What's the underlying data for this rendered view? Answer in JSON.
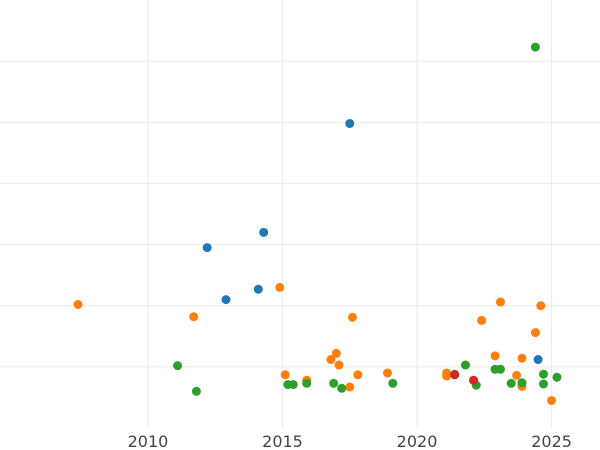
{
  "chart_data": {
    "type": "scatter",
    "title": "",
    "xlabel": "",
    "ylabel": "",
    "xlim": [
      2004.5,
      2026.8
    ],
    "ylim": [
      0,
      7
    ],
    "grid": true,
    "x_ticks": [
      2010,
      2015,
      2020,
      2025
    ],
    "x_tick_labels": [
      "2010",
      "2015",
      "2020",
      "2025"
    ],
    "y_gridlines": [
      1,
      2,
      3,
      4,
      5,
      6
    ],
    "series": [
      {
        "color": "#1f77b4",
        "points": [
          [
            2012.2,
            2.95
          ],
          [
            2012.9,
            2.1
          ],
          [
            2014.1,
            2.27
          ],
          [
            2014.3,
            3.2
          ],
          [
            2017.5,
            4.98
          ],
          [
            2024.5,
            1.12
          ]
        ]
      },
      {
        "color": "#ff7f0e",
        "points": [
          [
            2007.4,
            2.02
          ],
          [
            2011.7,
            1.82
          ],
          [
            2014.9,
            2.3
          ],
          [
            2015.1,
            0.87
          ],
          [
            2015.9,
            0.78
          ],
          [
            2016.8,
            1.12
          ],
          [
            2017.0,
            1.22
          ],
          [
            2017.1,
            1.03
          ],
          [
            2017.5,
            0.67
          ],
          [
            2017.6,
            1.81
          ],
          [
            2017.8,
            0.87
          ],
          [
            2018.9,
            0.9
          ],
          [
            2021.1,
            0.9
          ],
          [
            2021.1,
            0.85
          ],
          [
            2022.4,
            1.76
          ],
          [
            2022.9,
            1.18
          ],
          [
            2023.1,
            2.06
          ],
          [
            2023.7,
            0.86
          ],
          [
            2023.9,
            1.14
          ],
          [
            2023.9,
            0.68
          ],
          [
            2024.4,
            1.56
          ],
          [
            2024.6,
            2.0
          ],
          [
            2025.0,
            0.45
          ]
        ]
      },
      {
        "color": "#2ca02c",
        "points": [
          [
            2011.1,
            1.02
          ],
          [
            2011.8,
            0.6
          ],
          [
            2015.2,
            0.71
          ],
          [
            2015.4,
            0.71
          ],
          [
            2015.9,
            0.73
          ],
          [
            2016.9,
            0.73
          ],
          [
            2017.2,
            0.65
          ],
          [
            2019.1,
            0.73
          ],
          [
            2021.4,
            0.88
          ],
          [
            2021.8,
            1.03
          ],
          [
            2022.2,
            0.7
          ],
          [
            2022.9,
            0.96
          ],
          [
            2023.1,
            0.96
          ],
          [
            2023.5,
            0.73
          ],
          [
            2023.9,
            0.74
          ],
          [
            2024.4,
            6.23
          ],
          [
            2024.7,
            0.88
          ],
          [
            2024.7,
            0.72
          ],
          [
            2025.2,
            0.83
          ]
        ]
      },
      {
        "color": "#d62728",
        "points": [
          [
            2021.4,
            0.87
          ],
          [
            2022.1,
            0.78
          ]
        ]
      }
    ]
  }
}
